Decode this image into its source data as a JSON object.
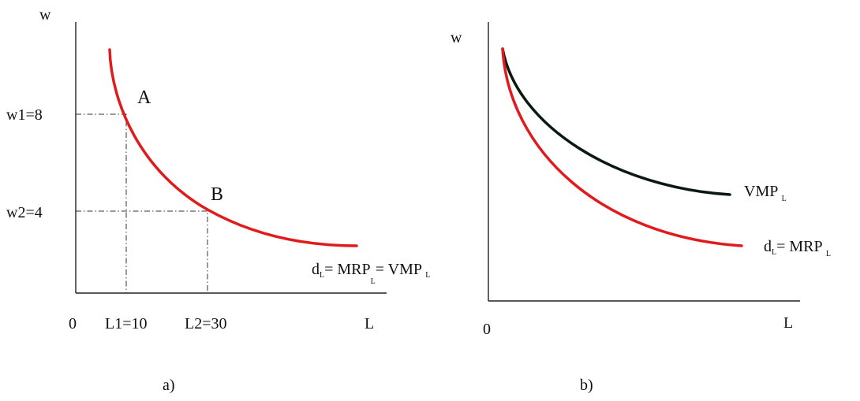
{
  "colors": {
    "red_curve": "#e11b1b",
    "black_curve": "#0b1a10",
    "axis": "#222222"
  },
  "panel_a": {
    "caption": "a)",
    "y_axis_label": "w",
    "x_axis_label": "L",
    "origin_label": "0",
    "w1_label": "w1=8",
    "w2_label": "w2=4",
    "l1_label": "L1=10",
    "l2_label": "L2=30",
    "point_a": "A",
    "point_b": "B",
    "curve_label": {
      "d": "d",
      "d_sub": "L",
      "eq1": "= MRP",
      "mrp_sub": "L",
      "eq2": "= VMP ",
      "vmp_sub": "L"
    }
  },
  "panel_b": {
    "caption": "b)",
    "y_axis_label": "w",
    "x_axis_label": "L",
    "origin_label": "0",
    "vmp_label": {
      "main": "VMP ",
      "sub": "L"
    },
    "mrp_label": {
      "d": "d",
      "d_sub": "L",
      "eq": "= MRP ",
      "mrp_sub": "L"
    }
  }
}
